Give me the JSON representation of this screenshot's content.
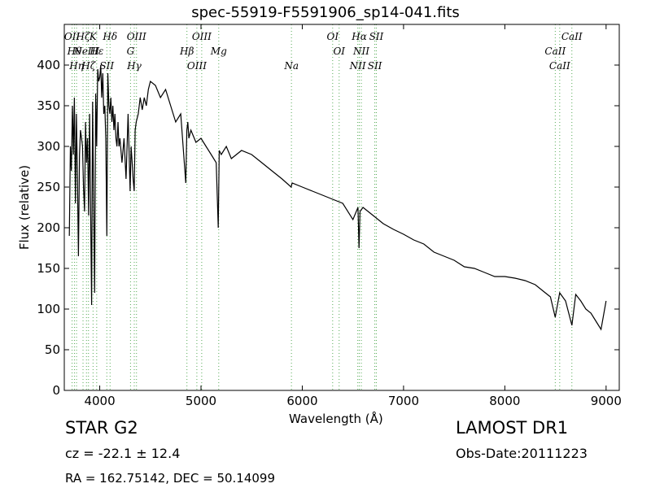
{
  "chart_data": {
    "type": "line",
    "title": "spec-55919-F5591906_sp14-041.fits",
    "xlabel": "Wavelength (Å)",
    "ylabel": "Flux (relative)",
    "xlim": [
      3650,
      9130
    ],
    "ylim": [
      0,
      450
    ],
    "xticks": [
      4000,
      5000,
      6000,
      7000,
      8000,
      9000
    ],
    "yticks": [
      0,
      50,
      100,
      150,
      200,
      250,
      300,
      350,
      400
    ],
    "grid": false,
    "series": [
      {
        "color": "#000000",
        "x": [
          3700,
          3710,
          3720,
          3730,
          3740,
          3750,
          3760,
          3770,
          3780,
          3790,
          3800,
          3810,
          3820,
          3830,
          3840,
          3850,
          3860,
          3870,
          3880,
          3890,
          3900,
          3910,
          3920,
          3930,
          3940,
          3950,
          3960,
          3970,
          3980,
          3990,
          4000,
          4010,
          4020,
          4030,
          4040,
          4050,
          4060,
          4070,
          4080,
          4090,
          4100,
          4110,
          4120,
          4130,
          4140,
          4150,
          4160,
          4170,
          4180,
          4190,
          4200,
          4220,
          4240,
          4260,
          4280,
          4300,
          4310,
          4320,
          4330,
          4340,
          4350,
          4360,
          4380,
          4400,
          4420,
          4440,
          4460,
          4480,
          4500,
          4550,
          4600,
          4650,
          4700,
          4750,
          4800,
          4850,
          4860,
          4870,
          4880,
          4900,
          4950,
          5000,
          5050,
          5100,
          5150,
          5170,
          5180,
          5200,
          5250,
          5300,
          5400,
          5500,
          5600,
          5700,
          5800,
          5890,
          5900,
          6000,
          6100,
          6200,
          6300,
          6400,
          6500,
          6550,
          6560,
          6570,
          6600,
          6700,
          6800,
          6900,
          7000,
          7100,
          7200,
          7300,
          7400,
          7500,
          7600,
          7700,
          7800,
          7900,
          8000,
          8100,
          8200,
          8300,
          8400,
          8450,
          8498,
          8542,
          8600,
          8662,
          8700,
          8750,
          8800,
          8850,
          8900,
          8950,
          9000
        ],
        "y": [
          190,
          300,
          270,
          350,
          290,
          360,
          230,
          340,
          260,
          165,
          290,
          320,
          310,
          300,
          250,
          220,
          330,
          280,
          310,
          215,
          340,
          220,
          105,
          355,
          230,
          120,
          365,
          300,
          395,
          380,
          385,
          400,
          360,
          390,
          340,
          350,
          310,
          190,
          390,
          350,
          340,
          360,
          330,
          350,
          320,
          340,
          310,
          300,
          330,
          300,
          310,
          280,
          310,
          260,
          340,
          245,
          300,
          280,
          260,
          245,
          320,
          330,
          340,
          360,
          345,
          360,
          350,
          370,
          380,
          375,
          360,
          370,
          350,
          330,
          340,
          255,
          320,
          330,
          310,
          320,
          305,
          310,
          300,
          290,
          280,
          200,
          295,
          290,
          300,
          285,
          295,
          290,
          280,
          270,
          260,
          250,
          255,
          250,
          245,
          240,
          235,
          230,
          210,
          225,
          175,
          220,
          225,
          215,
          205,
          198,
          192,
          185,
          180,
          170,
          165,
          160,
          152,
          150,
          145,
          140,
          140,
          138,
          135,
          130,
          120,
          115,
          90,
          120,
          110,
          80,
          118,
          110,
          100,
          95,
          85,
          75,
          110
        ]
      }
    ],
    "line_marks": [
      {
        "x": 3727,
        "label": "OII"
      },
      {
        "x": 3750,
        "label": "Hθ"
      },
      {
        "x": 3771,
        "label": "Hη"
      },
      {
        "x": 3835,
        "label": "Hζ"
      },
      {
        "x": 3869,
        "label": "NeIII"
      },
      {
        "x": 3889,
        "label": "Hζ"
      },
      {
        "x": 3934,
        "label": "K"
      },
      {
        "x": 3970,
        "label": "Hε"
      },
      {
        "x": 4070,
        "label": "SII"
      },
      {
        "x": 4102,
        "label": "Hδ"
      },
      {
        "x": 4304,
        "label": "G"
      },
      {
        "x": 4341,
        "label": "Hγ"
      },
      {
        "x": 4363,
        "label": "OIII"
      },
      {
        "x": 4861,
        "label": "Hβ"
      },
      {
        "x": 4959,
        "label": "OIII"
      },
      {
        "x": 5007,
        "label": "OIII"
      },
      {
        "x": 5175,
        "label": "Mg"
      },
      {
        "x": 5893,
        "label": "Na"
      },
      {
        "x": 6300,
        "label": "OI"
      },
      {
        "x": 6364,
        "label": "OI"
      },
      {
        "x": 6548,
        "label": "NII"
      },
      {
        "x": 6563,
        "label": "Hα"
      },
      {
        "x": 6583,
        "label": "NII"
      },
      {
        "x": 6716,
        "label": "SII"
      },
      {
        "x": 6731,
        "label": "SII"
      },
      {
        "x": 8498,
        "label": "CaII"
      },
      {
        "x": 8542,
        "label": "CaII"
      },
      {
        "x": 8662,
        "label": "CaII"
      }
    ]
  },
  "info": {
    "class_line": "STAR   G2",
    "cz_line": "cz = -22.1 ± 12.4",
    "radec_line": "RA = 162.75142, DEC = 50.14099",
    "survey": "LAMOST DR1",
    "obs_date": "Obs-Date:20111223"
  }
}
